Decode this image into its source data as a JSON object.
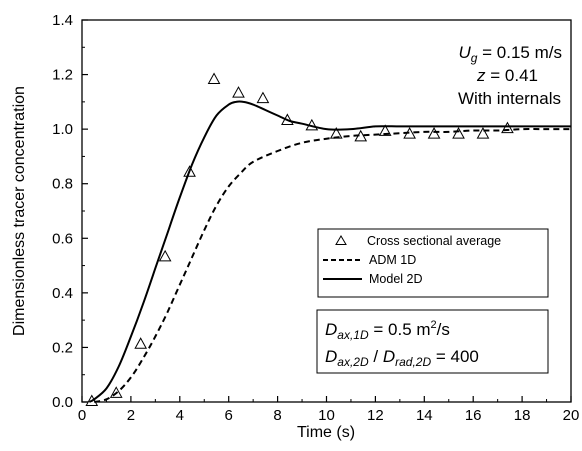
{
  "chart_data": {
    "type": "line",
    "xlabel": "Time (s)",
    "ylabel": "Dimensionless tracer concentration",
    "xlim": [
      0,
      20
    ],
    "ylim": [
      0,
      1.4
    ],
    "xticks": [
      0,
      2,
      4,
      6,
      8,
      10,
      12,
      14,
      16,
      18,
      20
    ],
    "xtick_labels": [
      "0",
      "2",
      "4",
      "6",
      "8",
      "10",
      "12",
      "14",
      "16",
      "18",
      "20"
    ],
    "yticks": [
      0,
      0.2,
      0.4,
      0.6,
      0.8,
      1.0,
      1.2,
      1.4
    ],
    "ytick_labels": [
      "0.0",
      "0.2",
      "0.4",
      "0.6",
      "0.8",
      "1.0",
      "1.2",
      "1.4"
    ],
    "grid": false,
    "legend_position": "center-right",
    "series": [
      {
        "name": "Cross sectional average",
        "style": "triangle-markers",
        "color": "#000000",
        "x": [
          0.4,
          1.4,
          2.4,
          3.4,
          4.4,
          5.4,
          6.4,
          7.4,
          8.4,
          9.4,
          10.4,
          11.4,
          12.4,
          13.4,
          14.4,
          15.4,
          16.4,
          17.4
        ],
        "y": [
          0.0,
          0.03,
          0.21,
          0.53,
          0.84,
          1.18,
          1.13,
          1.11,
          1.03,
          1.01,
          0.98,
          0.97,
          0.99,
          0.98,
          0.98,
          0.98,
          0.98,
          1.0
        ]
      },
      {
        "name": "ADM 1D",
        "style": "dashed",
        "color": "#000000",
        "x": [
          0.5,
          1.0,
          1.5,
          2.0,
          2.5,
          3.0,
          3.5,
          4.0,
          4.5,
          5.0,
          5.5,
          6.0,
          6.5,
          7.0,
          8.0,
          9.0,
          10.0,
          11.0,
          12.0,
          13.0,
          14.0,
          15.0,
          16.0,
          17.0,
          18.0,
          19.0,
          20.0
        ],
        "y": [
          0.0,
          0.01,
          0.04,
          0.09,
          0.16,
          0.24,
          0.33,
          0.43,
          0.53,
          0.63,
          0.72,
          0.79,
          0.84,
          0.88,
          0.92,
          0.95,
          0.965,
          0.975,
          0.98,
          0.985,
          0.99,
          0.99,
          0.995,
          0.995,
          1.0,
          1.0,
          1.0
        ]
      },
      {
        "name": "Model 2D",
        "style": "solid",
        "color": "#000000",
        "x": [
          0.3,
          0.5,
          1.0,
          1.5,
          2.0,
          2.5,
          3.0,
          3.5,
          4.0,
          4.5,
          5.0,
          5.5,
          6.0,
          6.3,
          6.6,
          7.0,
          7.5,
          8.0,
          8.5,
          9.0,
          10.0,
          11.0,
          12.0,
          13.0,
          14.0,
          15.0,
          16.0,
          17.0,
          18.0,
          19.0,
          20.0
        ],
        "y": [
          0.0,
          0.01,
          0.05,
          0.13,
          0.24,
          0.36,
          0.49,
          0.62,
          0.75,
          0.87,
          0.97,
          1.05,
          1.09,
          1.1,
          1.1,
          1.09,
          1.07,
          1.05,
          1.03,
          1.02,
          1.0,
          1.0,
          1.01,
          1.01,
          1.01,
          1.01,
          1.01,
          1.01,
          1.01,
          1.01,
          1.01
        ]
      }
    ]
  },
  "annotation_top": {
    "ug_symbol": "U",
    "ug_sub": "g",
    "ug_rest": " = 0.15 m/s",
    "z_symbol": "z",
    "z_rest": " = 0.41",
    "internals": "With internals"
  },
  "annotation_box": {
    "d1_symbol": "D",
    "d1_sub": "ax,1D",
    "d1_rest": " = 0.5 m",
    "d1_sup": "2",
    "d1_tail": "/s",
    "d2_symbol_a": "D",
    "d2_sub_a": "ax,2D",
    "d2_mid": " / ",
    "d2_symbol_b": "D",
    "d2_sub_b": "rad,2D",
    "d2_rest": " = 400"
  }
}
